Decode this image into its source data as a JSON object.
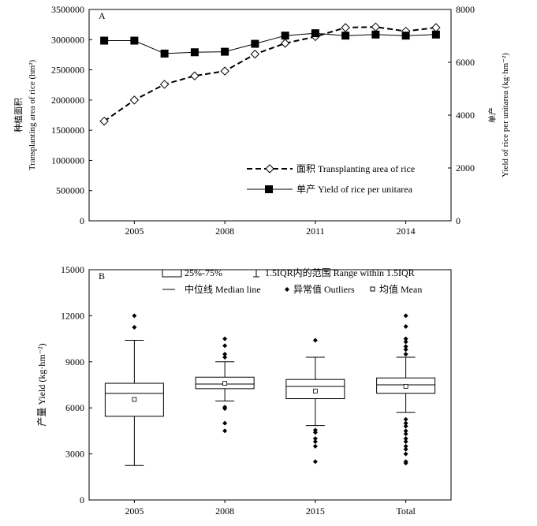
{
  "chart_data": [
    {
      "panel": "A",
      "type": "line",
      "x": [
        2004,
        2005,
        2006,
        2007,
        2008,
        2009,
        2010,
        2011,
        2012,
        2013,
        2014,
        2015
      ],
      "xticks": [
        2005,
        2008,
        2011,
        2014
      ],
      "xlim": [
        2003.5,
        2015.5
      ],
      "ylabel_left": [
        "种植面积",
        "Transplanting area of rice (hm²)"
      ],
      "ylabel_right": [
        "单产",
        "Yield of rice per unitarea (kg·hm⁻²)"
      ],
      "ylim_left": [
        0,
        3500000
      ],
      "yticks_left": [
        0,
        500000,
        1000000,
        1500000,
        2000000,
        2500000,
        3000000,
        3500000
      ],
      "ylim_right": [
        0,
        8000
      ],
      "yticks_right": [
        0,
        2000,
        4000,
        6000,
        8000
      ],
      "legend_position": "bottom-right",
      "series": [
        {
          "name": "面积 Transplanting area of rice",
          "axis": "left",
          "style": "dashed",
          "marker": "diamond-open",
          "values": [
            1650000,
            2000000,
            2260000,
            2400000,
            2480000,
            2760000,
            2940000,
            3050000,
            3200000,
            3210000,
            3140000,
            3200000
          ]
        },
        {
          "name": "单产 Yield of rice per unitarea",
          "axis": "right",
          "style": "solid",
          "marker": "square-filled",
          "values": [
            6820,
            6820,
            6330,
            6380,
            6400,
            6700,
            7010,
            7100,
            7010,
            7050,
            7010,
            7050
          ]
        }
      ]
    },
    {
      "panel": "B",
      "type": "box",
      "categories": [
        "2005",
        "2008",
        "2015",
        "Total"
      ],
      "ylabel": "产量 Yield (kg·hm⁻²)",
      "ylim": [
        0,
        15000
      ],
      "yticks": [
        0,
        3000,
        6000,
        9000,
        12000,
        15000
      ],
      "legend": [
        "25%-75%",
        "1.5IQR内的范围 Range within 1.5IQR",
        "中位线 Median line",
        "异常值 Outliers",
        "均值 Mean"
      ],
      "boxes": [
        {
          "category": "2005",
          "whisker_low": 2250,
          "q1": 5450,
          "median": 6950,
          "q3": 7600,
          "whisker_high": 10400,
          "mean": 6550,
          "outliers": [
            11250,
            12000
          ]
        },
        {
          "category": "2008",
          "whisker_low": 6450,
          "q1": 7250,
          "median": 7550,
          "q3": 8000,
          "whisker_high": 9000,
          "mean": 7600,
          "outliers": [
            10500,
            10050,
            9500,
            9300,
            6050,
            5950,
            5000,
            4500
          ]
        },
        {
          "category": "2015",
          "whisker_low": 4850,
          "q1": 6600,
          "median": 7400,
          "q3": 7850,
          "whisker_high": 9300,
          "mean": 7100,
          "outliers": [
            10400,
            4550,
            4400,
            4000,
            3800,
            3500,
            2500
          ]
        },
        {
          "category": "Total",
          "whisker_low": 5700,
          "q1": 6950,
          "median": 7500,
          "q3": 7950,
          "whisker_high": 9300,
          "mean": 7400,
          "outliers": [
            12000,
            11300,
            10500,
            10300,
            10000,
            9800,
            9500,
            5250,
            5000,
            4800,
            4500,
            4300,
            4000,
            3800,
            3500,
            3300,
            3000,
            2500,
            2400
          ]
        }
      ]
    }
  ]
}
